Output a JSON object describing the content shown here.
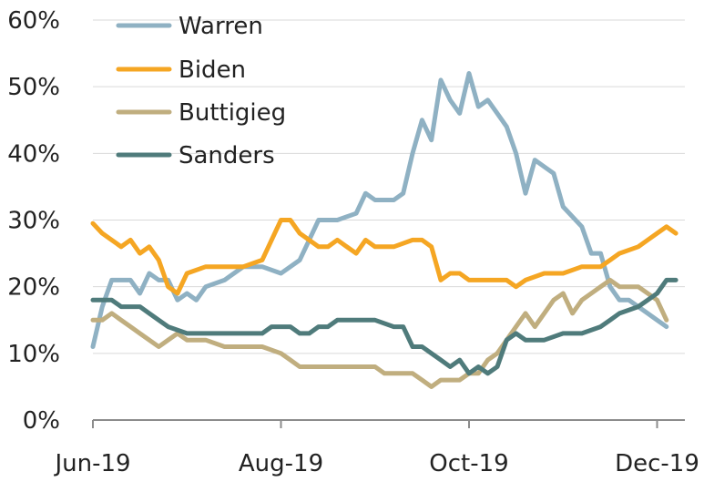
{
  "chart_data": {
    "type": "line",
    "title": "",
    "xlabel": "",
    "ylabel": "",
    "ylim": [
      0,
      60
    ],
    "xlim": [
      0,
      31
    ],
    "grid": true,
    "legend_position": "top-left",
    "y_ticks": [
      {
        "value": 0,
        "label": "0%"
      },
      {
        "value": 10,
        "label": "10%"
      },
      {
        "value": 20,
        "label": "20%"
      },
      {
        "value": 30,
        "label": "30%"
      },
      {
        "value": 40,
        "label": "40%"
      },
      {
        "value": 50,
        "label": "50%"
      },
      {
        "value": 60,
        "label": "60%"
      }
    ],
    "x_ticks": [
      {
        "value": 0,
        "label": "Jun-19"
      },
      {
        "value": 10,
        "label": "Aug-19"
      },
      {
        "value": 20,
        "label": "Oct-19"
      },
      {
        "value": 30,
        "label": "Dec-19"
      }
    ],
    "series": [
      {
        "name": "Warren",
        "color": "#8fb1c3",
        "points": [
          [
            0,
            11
          ],
          [
            0.5,
            17
          ],
          [
            1,
            21
          ],
          [
            2,
            21
          ],
          [
            2.5,
            19
          ],
          [
            3,
            22
          ],
          [
            3.5,
            21
          ],
          [
            4,
            21
          ],
          [
            4.5,
            18
          ],
          [
            5,
            19
          ],
          [
            5.5,
            18
          ],
          [
            6,
            20
          ],
          [
            7,
            21
          ],
          [
            8,
            23
          ],
          [
            9,
            23
          ],
          [
            10,
            22
          ],
          [
            11,
            24
          ],
          [
            11.5,
            27
          ],
          [
            12,
            30
          ],
          [
            13,
            30
          ],
          [
            14,
            31
          ],
          [
            14.5,
            34
          ],
          [
            15,
            33
          ],
          [
            16,
            33
          ],
          [
            16.5,
            34
          ],
          [
            17,
            40
          ],
          [
            17.5,
            45
          ],
          [
            18,
            42
          ],
          [
            18.5,
            51
          ],
          [
            19,
            48
          ],
          [
            19.5,
            46
          ],
          [
            20,
            52
          ],
          [
            20.5,
            47
          ],
          [
            21,
            48
          ],
          [
            21.5,
            46
          ],
          [
            22,
            44
          ],
          [
            22.5,
            40
          ],
          [
            23,
            34
          ],
          [
            23.5,
            39
          ],
          [
            24,
            38
          ],
          [
            24.5,
            37
          ],
          [
            25,
            32
          ],
          [
            26,
            29
          ],
          [
            26.5,
            25
          ],
          [
            27,
            25
          ],
          [
            27.5,
            20
          ],
          [
            28,
            18
          ],
          [
            28.5,
            18
          ],
          [
            29,
            17
          ],
          [
            29.5,
            16
          ],
          [
            30,
            15
          ],
          [
            30.5,
            14
          ]
        ]
      },
      {
        "name": "Biden",
        "color": "#f5a623",
        "points": [
          [
            0,
            29.5
          ],
          [
            0.5,
            28
          ],
          [
            1,
            27
          ],
          [
            1.5,
            26
          ],
          [
            2,
            27
          ],
          [
            2.5,
            25
          ],
          [
            3,
            26
          ],
          [
            3.5,
            24
          ],
          [
            4,
            20
          ],
          [
            4.5,
            19
          ],
          [
            5,
            22
          ],
          [
            6,
            23
          ],
          [
            7,
            23
          ],
          [
            8,
            23
          ],
          [
            9,
            24
          ],
          [
            9.5,
            27
          ],
          [
            10,
            30
          ],
          [
            10.5,
            30
          ],
          [
            11,
            28
          ],
          [
            11.5,
            27
          ],
          [
            12,
            26
          ],
          [
            12.5,
            26
          ],
          [
            13,
            27
          ],
          [
            13.5,
            26
          ],
          [
            14,
            25
          ],
          [
            14.5,
            27
          ],
          [
            15,
            26
          ],
          [
            16,
            26
          ],
          [
            17,
            27
          ],
          [
            17.5,
            27
          ],
          [
            18,
            26
          ],
          [
            18.5,
            21
          ],
          [
            19,
            22
          ],
          [
            19.5,
            22
          ],
          [
            20,
            21
          ],
          [
            21,
            21
          ],
          [
            22,
            21
          ],
          [
            22.5,
            20
          ],
          [
            23,
            21
          ],
          [
            24,
            22
          ],
          [
            25,
            22
          ],
          [
            26,
            23
          ],
          [
            27,
            23
          ],
          [
            27.5,
            24
          ],
          [
            28,
            25
          ],
          [
            29,
            26
          ],
          [
            29.5,
            27
          ],
          [
            30,
            28
          ],
          [
            30.5,
            29
          ],
          [
            31,
            28
          ]
        ]
      },
      {
        "name": "Buttigieg",
        "color": "#c0ae7f",
        "points": [
          [
            0,
            15
          ],
          [
            0.5,
            15
          ],
          [
            1,
            16
          ],
          [
            1.5,
            15
          ],
          [
            2,
            14
          ],
          [
            2.5,
            13
          ],
          [
            3,
            12
          ],
          [
            3.5,
            11
          ],
          [
            4,
            12
          ],
          [
            4.5,
            13
          ],
          [
            5,
            12
          ],
          [
            6,
            12
          ],
          [
            7,
            11
          ],
          [
            8,
            11
          ],
          [
            9,
            11
          ],
          [
            10,
            10
          ],
          [
            10.5,
            9
          ],
          [
            11,
            8
          ],
          [
            12,
            8
          ],
          [
            13,
            8
          ],
          [
            14,
            8
          ],
          [
            15,
            8
          ],
          [
            15.5,
            7
          ],
          [
            16,
            7
          ],
          [
            16.5,
            7
          ],
          [
            17,
            7
          ],
          [
            17.5,
            6
          ],
          [
            18,
            5
          ],
          [
            18.5,
            6
          ],
          [
            19,
            6
          ],
          [
            19.5,
            6
          ],
          [
            20,
            7
          ],
          [
            20.5,
            7
          ],
          [
            21,
            9
          ],
          [
            21.5,
            10
          ],
          [
            22,
            12
          ],
          [
            22.5,
            14
          ],
          [
            23,
            16
          ],
          [
            23.5,
            14
          ],
          [
            24,
            16
          ],
          [
            24.5,
            18
          ],
          [
            25,
            19
          ],
          [
            25.5,
            16
          ],
          [
            26,
            18
          ],
          [
            26.5,
            19
          ],
          [
            27,
            20
          ],
          [
            27.5,
            21
          ],
          [
            28,
            20
          ],
          [
            29,
            20
          ],
          [
            29.5,
            19
          ],
          [
            30,
            18
          ],
          [
            30.5,
            15
          ]
        ]
      },
      {
        "name": "Sanders",
        "color": "#4f7b7b",
        "points": [
          [
            0,
            18
          ],
          [
            0.5,
            18
          ],
          [
            1,
            18
          ],
          [
            1.5,
            17
          ],
          [
            2,
            17
          ],
          [
            2.5,
            17
          ],
          [
            3,
            16
          ],
          [
            3.5,
            15
          ],
          [
            4,
            14
          ],
          [
            5,
            13
          ],
          [
            6,
            13
          ],
          [
            7,
            13
          ],
          [
            8,
            13
          ],
          [
            9,
            13
          ],
          [
            9.5,
            14
          ],
          [
            10,
            14
          ],
          [
            10.5,
            14
          ],
          [
            11,
            13
          ],
          [
            11.5,
            13
          ],
          [
            12,
            14
          ],
          [
            12.5,
            14
          ],
          [
            13,
            15
          ],
          [
            14,
            15
          ],
          [
            15,
            15
          ],
          [
            16,
            14
          ],
          [
            16.5,
            14
          ],
          [
            17,
            11
          ],
          [
            17.5,
            11
          ],
          [
            18,
            10
          ],
          [
            18.5,
            9
          ],
          [
            19,
            8
          ],
          [
            19.5,
            9
          ],
          [
            20,
            7
          ],
          [
            20.5,
            8
          ],
          [
            21,
            7
          ],
          [
            21.5,
            8
          ],
          [
            22,
            12
          ],
          [
            22.5,
            13
          ],
          [
            23,
            12
          ],
          [
            24,
            12
          ],
          [
            25,
            13
          ],
          [
            26,
            13
          ],
          [
            27,
            14
          ],
          [
            27.5,
            15
          ],
          [
            28,
            16
          ],
          [
            29,
            17
          ],
          [
            29.5,
            18
          ],
          [
            30,
            19
          ],
          [
            30.5,
            21
          ],
          [
            31,
            21
          ]
        ]
      }
    ]
  }
}
